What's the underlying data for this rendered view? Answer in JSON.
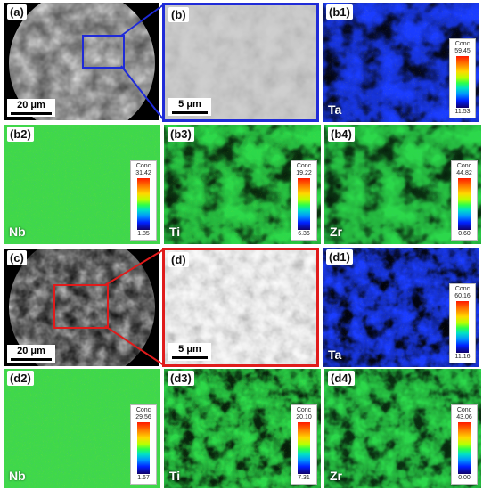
{
  "panels": {
    "a": {
      "label": "(a)",
      "scale": "20 μm"
    },
    "b": {
      "label": "(b)",
      "scale": "5 μm"
    },
    "b1": {
      "label": "(b1)",
      "element": "Ta",
      "legend": {
        "title": "Conc",
        "max": "59.45",
        "min": "11.53"
      }
    },
    "b2": {
      "label": "(b2)",
      "element": "Nb",
      "legend": {
        "title": "Conc",
        "max": "31.42",
        "min": "1.85"
      }
    },
    "b3": {
      "label": "(b3)",
      "element": "Ti",
      "legend": {
        "title": "Conc",
        "max": "19.22",
        "min": "6.36"
      }
    },
    "b4": {
      "label": "(b4)",
      "element": "Zr",
      "legend": {
        "title": "Conc",
        "max": "44.82",
        "min": "0.60"
      }
    },
    "c": {
      "label": "(c)",
      "scale": "20 μm"
    },
    "d": {
      "label": "(d)",
      "scale": "5 μm"
    },
    "d1": {
      "label": "(d1)",
      "element": "Ta",
      "legend": {
        "title": "Conc",
        "max": "60.16",
        "min": "11.16"
      }
    },
    "d2": {
      "label": "(d2)",
      "element": "Nb",
      "legend": {
        "title": "Conc",
        "max": "29.56",
        "min": "1.67"
      }
    },
    "d3": {
      "label": "(d3)",
      "element": "Ti",
      "legend": {
        "title": "Conc",
        "max": "20.10",
        "min": "7.31"
      }
    },
    "d4": {
      "label": "(d4)",
      "element": "Zr",
      "legend": {
        "title": "Conc",
        "max": "43.06",
        "min": "0.00"
      }
    }
  },
  "colors": {
    "inset_blue": "#1f2bd8",
    "inset_red": "#e01b1b",
    "map_blue": "#1a3cff",
    "map_green": "#2cd84a",
    "map_red": "#ff2a00"
  }
}
